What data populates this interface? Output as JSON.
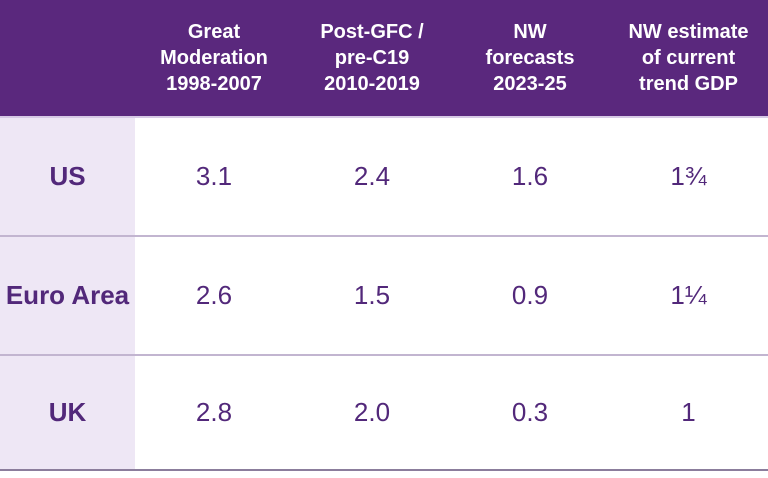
{
  "table": {
    "corner_label": "",
    "columns": [
      "Great\nModeration\n1998-2007",
      "Post-GFC /\npre-C19\n2010-2019",
      "NW\nforecasts\n2023-25",
      "NW estimate\nof current\ntrend GDP"
    ],
    "rows": [
      {
        "label": "US",
        "values": [
          "3.1",
          "2.4",
          "1.6",
          "1¾"
        ]
      },
      {
        "label": "Euro Area",
        "values": [
          "2.6",
          "1.5",
          "0.9",
          "1¼"
        ]
      },
      {
        "label": "UK",
        "values": [
          "2.8",
          "2.0",
          "0.3",
          "1"
        ]
      }
    ]
  },
  "chart_data": {
    "type": "table",
    "columns": [
      "Great Moderation 1998-2007",
      "Post-GFC / pre-C19 2010-2019",
      "NW forecasts 2023-25",
      "NW estimate of current trend GDP"
    ],
    "row_labels": [
      "US",
      "Euro Area",
      "UK"
    ],
    "values": [
      [
        "3.1",
        "2.4",
        "1.6",
        "1¾"
      ],
      [
        "2.6",
        "1.5",
        "0.9",
        "1¼"
      ],
      [
        "2.8",
        "2.0",
        "0.3",
        "1"
      ]
    ]
  },
  "colors": {
    "header_bg": "#5A287D",
    "header_text": "#FFFFFF",
    "row_label_bg": "#EEE7F5",
    "body_text": "#52287A",
    "row_divider": "#C2B5D0",
    "bottom_border": "#8B7D9C",
    "header_underline": "#D6C9E5"
  }
}
